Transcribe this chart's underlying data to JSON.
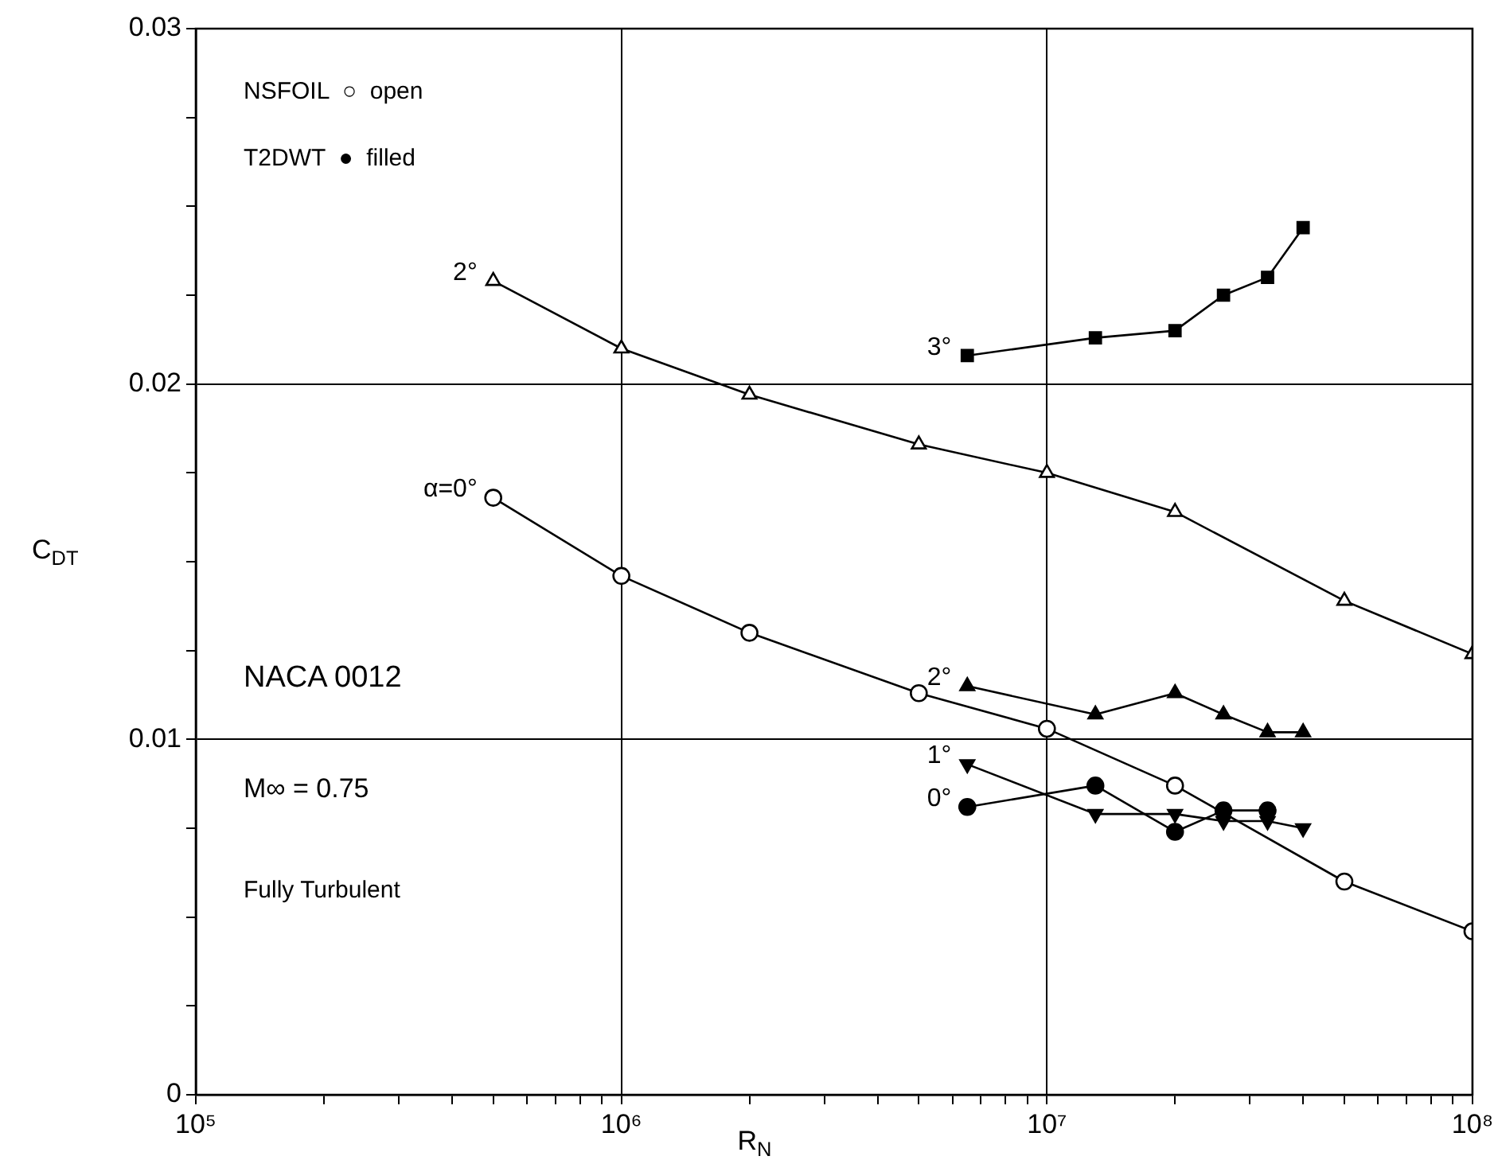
{
  "chart_data": {
    "type": "line",
    "xlabel": "R$_{N}$",
    "ylabel": "C$_{DT}$",
    "log": "x",
    "grid": true,
    "legend": false,
    "line_style": "solid",
    "xlim": [
      100000,
      100000000
    ],
    "xticks": [
      {
        "value": 100000,
        "label": "10⁵"
      },
      {
        "value": 200000,
        "label": null
      },
      {
        "value": 300000,
        "label": null
      },
      {
        "value": 400000,
        "label": null
      },
      {
        "value": 500000,
        "label": null
      },
      {
        "value": 600000,
        "label": null
      },
      {
        "value": 700000,
        "label": null
      },
      {
        "value": 800000,
        "label": null
      },
      {
        "value": 900000,
        "label": null
      },
      {
        "value": 1000000,
        "label": "10⁶"
      },
      {
        "value": 2000000,
        "label": null
      },
      {
        "value": 3000000,
        "label": null
      },
      {
        "value": 4000000,
        "label": null
      },
      {
        "value": 5000000,
        "label": null
      },
      {
        "value": 6000000,
        "label": null
      },
      {
        "value": 7000000,
        "label": null
      },
      {
        "value": 8000000,
        "label": null
      },
      {
        "value": 9000000,
        "label": null
      },
      {
        "value": 10000000,
        "label": "10⁷"
      },
      {
        "value": 20000000,
        "label": null
      },
      {
        "value": 30000000,
        "label": null
      },
      {
        "value": 40000000,
        "label": null
      },
      {
        "value": 50000000,
        "label": null
      },
      {
        "value": 60000000,
        "label": null
      },
      {
        "value": 70000000,
        "label": null
      },
      {
        "value": 80000000,
        "label": null
      },
      {
        "value": 90000000,
        "label": null
      },
      {
        "value": 100000000,
        "label": "10⁸"
      }
    ],
    "ylim": [
      0,
      0.03
    ],
    "yticks": [
      0,
      {
        "value": 0.0025,
        "label": null
      },
      {
        "value": 0.005,
        "label": null
      },
      {
        "value": 0.0075,
        "label": null
      },
      0.01,
      {
        "value": 0.0125,
        "label": null
      },
      {
        "value": 0.015,
        "label": null
      },
      {
        "value": 0.0175,
        "label": null
      },
      0.02,
      {
        "value": 0.0225,
        "label": null
      },
      {
        "value": 0.025,
        "label": null
      },
      {
        "value": 0.0275,
        "label": null
      },
      0.03
    ],
    "annotations": [
      "NSFOIL  ○  open",
      "T2DWT  ●  filled",
      "NACA 0012",
      "M∞ = 0.75",
      "Fully Turbulent"
    ],
    "series": [
      {
        "name": "α=0°",
        "color": "#000000",
        "marker": "circle",
        "x": [
          500000,
          1000000,
          2000000,
          5000000,
          10000000,
          20000000,
          50000000,
          100000000
        ],
        "values": [
          0.0168,
          0.0146,
          0.013,
          0.0113,
          0.0103,
          0.0087,
          0.006,
          0.0046
        ]
      },
      {
        "name": "2°",
        "color": "#000000",
        "marker": "triangle",
        "x": [
          500000,
          1000000,
          2000000,
          5000000,
          10000000,
          20000000,
          50000000,
          100000000
        ],
        "values": [
          0.0229,
          0.021,
          0.0197,
          0.0183,
          0.0175,
          0.0164,
          0.0139,
          0.0124
        ]
      },
      {
        "name": "3°",
        "color": "#000000",
        "marker": "square",
        "x": [
          6500000,
          13000000,
          20000000,
          26000000,
          33000000,
          40000000
        ],
        "values": [
          0.0208,
          0.0213,
          0.0215,
          0.0225,
          0.023,
          0.0244
        ]
      },
      {
        "name": "2°",
        "color": "#000000",
        "marker": "triangle",
        "x": [
          6500000,
          13000000,
          20000000,
          26000000,
          33000000,
          40000000
        ],
        "values": [
          0.0115,
          0.0107,
          0.0113,
          0.0107,
          0.0102,
          0.0102
        ]
      },
      {
        "name": "1°",
        "color": "#000000",
        "marker": "triangle",
        "x": [
          6500000,
          13000000,
          20000000,
          26000000,
          33000000,
          40000000
        ],
        "values": [
          0.0093,
          0.0079,
          0.0079,
          0.0077,
          0.0077,
          0.0075
        ]
      },
      {
        "name": "0°",
        "color": "#000000",
        "marker": "circle",
        "x": [
          6500000,
          13000000,
          20000000,
          26000000,
          33000000
        ],
        "values": [
          0.0081,
          0.0087,
          0.0074,
          0.008,
          0.008
        ]
      }
    ]
  }
}
